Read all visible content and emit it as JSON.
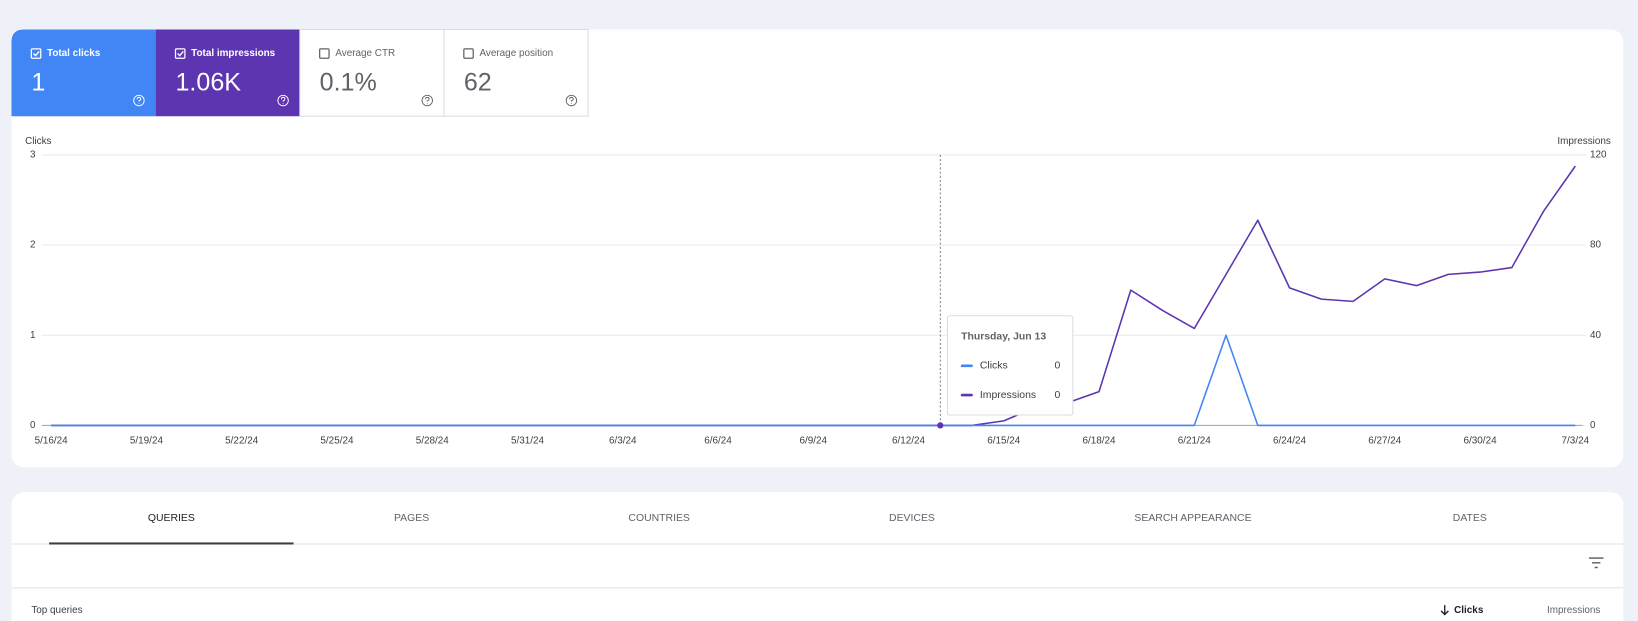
{
  "metrics": [
    {
      "label": "Total clicks",
      "value": "1",
      "checked": true,
      "color": "#4285f4"
    },
    {
      "label": "Total impressions",
      "value": "1.06K",
      "checked": true,
      "color": "#5e35b1"
    },
    {
      "label": "Average CTR",
      "value": "0.1%",
      "checked": false
    },
    {
      "label": "Average position",
      "value": "62",
      "checked": false
    }
  ],
  "chart_data": {
    "type": "line",
    "ylabel": "Clicks",
    "y2label": "Impressions",
    "categories": [
      "5/16/24",
      null,
      null,
      "5/19/24",
      null,
      null,
      "5/22/24",
      null,
      null,
      "5/25/24",
      null,
      null,
      "5/28/24",
      null,
      null,
      "5/31/24",
      null,
      null,
      "6/3/24",
      null,
      null,
      "6/6/24",
      null,
      null,
      "6/9/24",
      null,
      null,
      "6/12/24",
      null,
      null,
      "6/15/24",
      null,
      null,
      "6/18/24",
      null,
      null,
      "6/21/24",
      null,
      null,
      "6/24/24",
      null,
      null,
      "6/27/24",
      null,
      null,
      "6/30/24",
      null,
      null,
      "7/3/24"
    ],
    "series": [
      {
        "name": "Clicks",
        "color": "#4285f4",
        "values": [
          0,
          0,
          0,
          0,
          0,
          0,
          0,
          0,
          0,
          0,
          0,
          0,
          0,
          0,
          0,
          0,
          0,
          0,
          0,
          0,
          0,
          0,
          0,
          0,
          0,
          0,
          0,
          0,
          0,
          0,
          0,
          0,
          0,
          0,
          0,
          0,
          0,
          1,
          0,
          0,
          0,
          0,
          0,
          0,
          0,
          0,
          0,
          0,
          0
        ]
      },
      {
        "name": "Impressions",
        "color": "#5e35b1",
        "axis": "y2",
        "values": [
          0,
          0,
          0,
          0,
          0,
          0,
          0,
          0,
          0,
          0,
          0,
          0,
          0,
          0,
          0,
          0,
          0,
          0,
          0,
          0,
          0,
          0,
          0,
          0,
          0,
          0,
          0,
          0,
          0,
          0,
          2,
          8,
          10,
          15,
          60,
          51,
          43,
          67,
          91,
          61,
          56,
          55,
          65,
          62,
          67,
          68,
          70,
          95,
          115
        ]
      }
    ],
    "ylim": [
      0,
      3
    ],
    "yticks": [
      0,
      1,
      2,
      3
    ],
    "y2lim": [
      0,
      120
    ],
    "y2ticks": [
      0,
      40,
      80,
      120
    ],
    "grid": true,
    "tooltip": {
      "title": "Thursday, Jun 13"
    }
  },
  "tabs": [
    "QUERIES",
    "PAGES",
    "COUNTRIES",
    "DEVICES",
    "SEARCH APPEARANCE",
    "DATES"
  ],
  "table": {
    "title": "Top queries",
    "columns": [
      "Clicks",
      "Impressions"
    ]
  }
}
